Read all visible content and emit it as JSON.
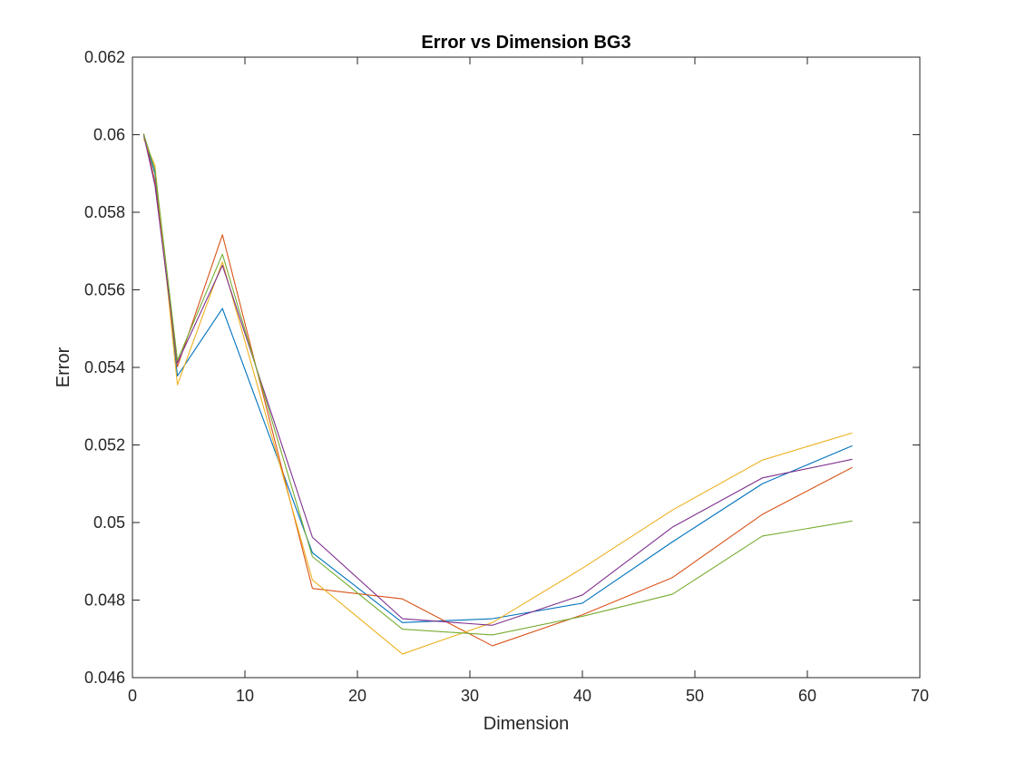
{
  "chart_data": {
    "type": "line",
    "title": "Error vs Dimension BG3",
    "xlabel": "Dimension",
    "ylabel": "Error",
    "xlim": [
      0,
      70
    ],
    "ylim": [
      0.046,
      0.062
    ],
    "xticks": [
      "0",
      "10",
      "20",
      "30",
      "40",
      "50",
      "60",
      "70"
    ],
    "yticks": [
      "0.046",
      "0.048",
      "0.05",
      "0.052",
      "0.054",
      "0.056",
      "0.058",
      "0.06",
      "0.062"
    ],
    "grid": false,
    "legend": "none",
    "x": [
      1,
      2,
      4,
      8,
      16,
      24,
      32,
      40,
      48,
      56,
      64
    ],
    "series": [
      {
        "color": "#0072BD",
        "values": [
          0.05998,
          0.059,
          0.05378,
          0.05552,
          0.04922,
          0.04742,
          0.04752,
          0.04792,
          0.0495,
          0.051,
          0.05198
        ]
      },
      {
        "color": "#D95319",
        "values": [
          0.06003,
          0.0588,
          0.05402,
          0.05742,
          0.0483,
          0.04803,
          0.04682,
          0.04762,
          0.04858,
          0.05021,
          0.05142
        ]
      },
      {
        "color": "#EDB120",
        "values": [
          0.0599,
          0.0592,
          0.05355,
          0.05672,
          0.04852,
          0.04661,
          0.04742,
          0.04882,
          0.05032,
          0.05161,
          0.05231
        ]
      },
      {
        "color": "#7E2F8E",
        "values": [
          0.06,
          0.0587,
          0.05412,
          0.05663,
          0.04962,
          0.04752,
          0.04735,
          0.04813,
          0.04988,
          0.05115,
          0.05163
        ]
      },
      {
        "color": "#77AC30",
        "values": [
          0.06002,
          0.0591,
          0.05418,
          0.05692,
          0.04912,
          0.04725,
          0.0471,
          0.04758,
          0.04815,
          0.04965,
          0.05004
        ]
      }
    ]
  }
}
